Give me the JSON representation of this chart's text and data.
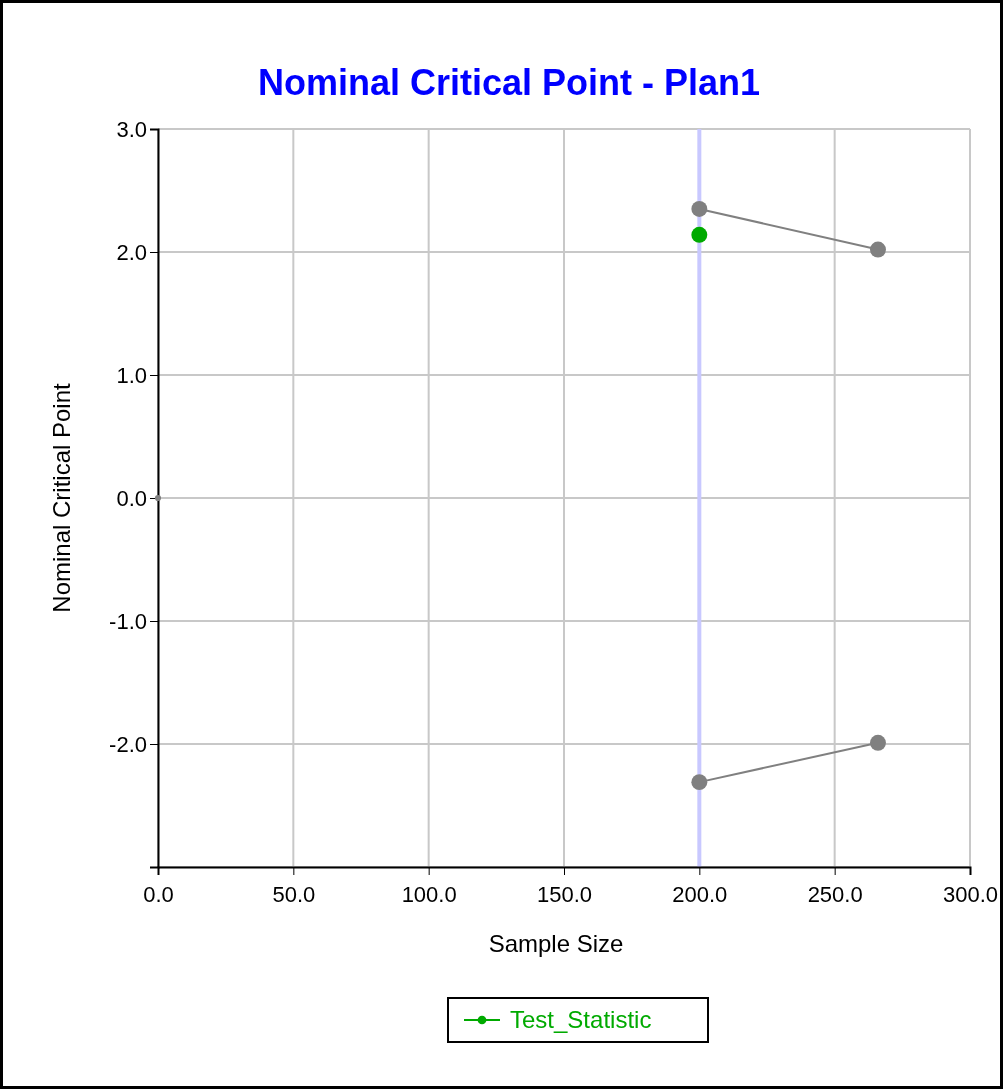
{
  "chart_data": {
    "type": "line",
    "title": "Nominal Critical Point - Plan1",
    "xlabel": "Sample Size",
    "ylabel": "Nominal Critical Point",
    "xlim": [
      0,
      300
    ],
    "xticks": [
      {
        "value": 0,
        "label": "0.0"
      },
      {
        "value": 50,
        "label": "50.0"
      },
      {
        "value": 100,
        "label": "100.0"
      },
      {
        "value": 150,
        "label": "150.0"
      },
      {
        "value": 200,
        "label": "200.0"
      },
      {
        "value": 250,
        "label": "250.0"
      },
      {
        "value": 300,
        "label": "300.0"
      }
    ],
    "ylim": [
      -3,
      3
    ],
    "yticks": [
      {
        "value": -3,
        "label": null
      },
      {
        "value": -2,
        "label": "-2.0"
      },
      {
        "value": -1,
        "label": "-1.0"
      },
      {
        "value": 0,
        "label": "0.0"
      },
      {
        "value": 1,
        "label": "1.0"
      },
      {
        "value": 2,
        "label": "2.0"
      },
      {
        "value": 3,
        "label": "3.0"
      }
    ],
    "grid": true,
    "legend": "bottom",
    "marker": "circle",
    "line_style": "solid",
    "ref_lines": [
      {
        "axis": "x",
        "value": 200,
        "color": "#c8c8ff"
      }
    ],
    "series": [
      {
        "color": "#808080",
        "x": [
          200,
          266
        ],
        "values": [
          2.35,
          2.02
        ]
      },
      {
        "color": "#808080",
        "x": [
          200,
          266
        ],
        "values": [
          -2.31,
          -1.99
        ]
      },
      {
        "type": "scatter",
        "color": "#808080",
        "x": [
          0
        ],
        "values": [
          0
        ]
      },
      {
        "name": "Test_Statistic",
        "color": "#00aa00",
        "x": [
          200
        ],
        "values": [
          2.14
        ]
      }
    ]
  }
}
